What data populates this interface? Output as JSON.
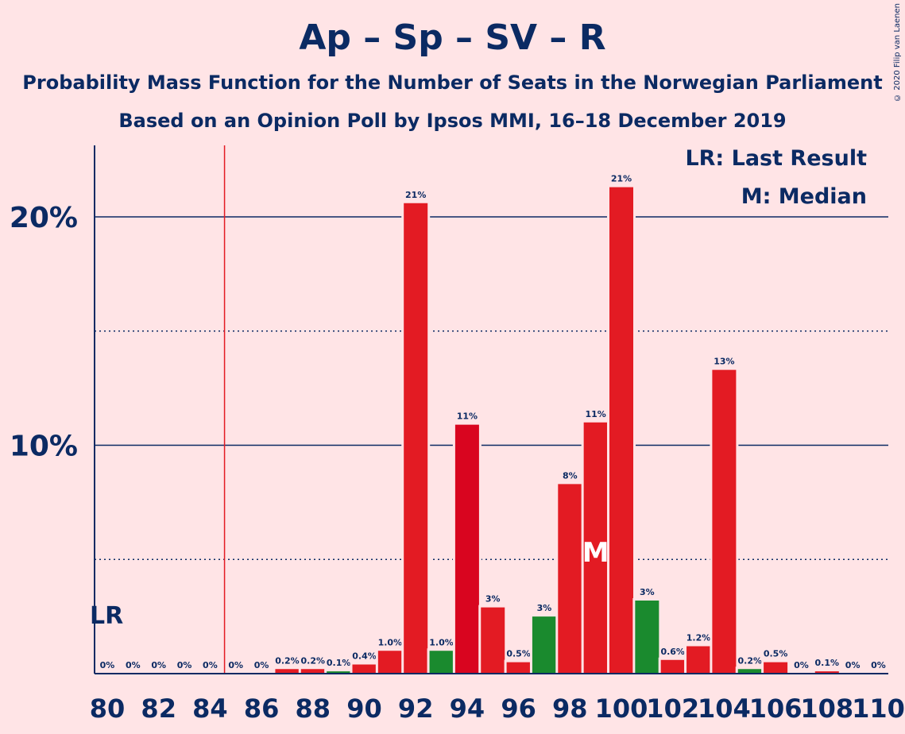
{
  "chart_data": {
    "type": "bar",
    "title": "Ap – Sp – SV – R",
    "subtitle": [
      "Probability Mass Function for the Number of Seats in the Norwegian Parliament",
      "Based on an Opinion Poll by Ipsos MMI, 16–18 December 2019"
    ],
    "copyright": "© 2020 Filip van Laenen",
    "legend": {
      "placement": "top-right",
      "entries": [
        "LR: Last Result",
        "M: Median"
      ]
    },
    "last_result": {
      "seats": 85,
      "marker_label": "LR"
    },
    "median": {
      "seats": 99,
      "marker_label": "M"
    },
    "x": [
      80,
      81,
      82,
      83,
      84,
      85,
      86,
      87,
      88,
      89,
      90,
      91,
      92,
      93,
      94,
      95,
      96,
      97,
      98,
      99,
      100,
      101,
      102,
      103,
      104,
      105,
      106,
      107,
      108,
      109,
      110
    ],
    "values": [
      0,
      0,
      0,
      0,
      0,
      0,
      0,
      0.2,
      0.2,
      0.1,
      0.4,
      1.0,
      20.6,
      1.0,
      10.9,
      2.9,
      0.5,
      2.5,
      8.3,
      11.0,
      21.3,
      3.2,
      0.6,
      1.2,
      13.3,
      0.2,
      0.5,
      0,
      0.1,
      0,
      0
    ],
    "labels": [
      "0%",
      "0%",
      "0%",
      "0%",
      "0%",
      "0%",
      "0%",
      "0.2%",
      "0.2%",
      "0.1%",
      "0.4%",
      "1.0%",
      "21%",
      "1.0%",
      "11%",
      "3%",
      "0.5%",
      "3%",
      "8%",
      "11%",
      "21%",
      "3%",
      "0.6%",
      "1.2%",
      "13%",
      "0.2%",
      "0.5%",
      "0%",
      "0.1%",
      "0%",
      "0%"
    ],
    "bar_colors": [
      "red",
      "red",
      "red",
      "red",
      "red",
      "red",
      "red",
      "red",
      "red",
      "green",
      "red",
      "red",
      "red",
      "green",
      "darkred",
      "red",
      "red",
      "green",
      "red",
      "red",
      "red",
      "green",
      "red",
      "red",
      "red",
      "green",
      "red",
      "red",
      "red",
      "red",
      "red"
    ],
    "colors": {
      "red": "#e31b23",
      "darkred": "#d9051f",
      "green": "#1a8a2e",
      "axis": "#0b2a63",
      "background": "#ffe4e6"
    },
    "x_tick_labels": [
      "80",
      "82",
      "84",
      "86",
      "88",
      "90",
      "92",
      "94",
      "96",
      "98",
      "100",
      "102",
      "104",
      "106",
      "108",
      "110"
    ],
    "y_tick_labels": [
      "10%",
      "20%"
    ],
    "ylim": [
      0,
      23.1
    ],
    "grid": {
      "solid": [
        10,
        20
      ],
      "dotted": [
        5,
        15
      ]
    }
  }
}
